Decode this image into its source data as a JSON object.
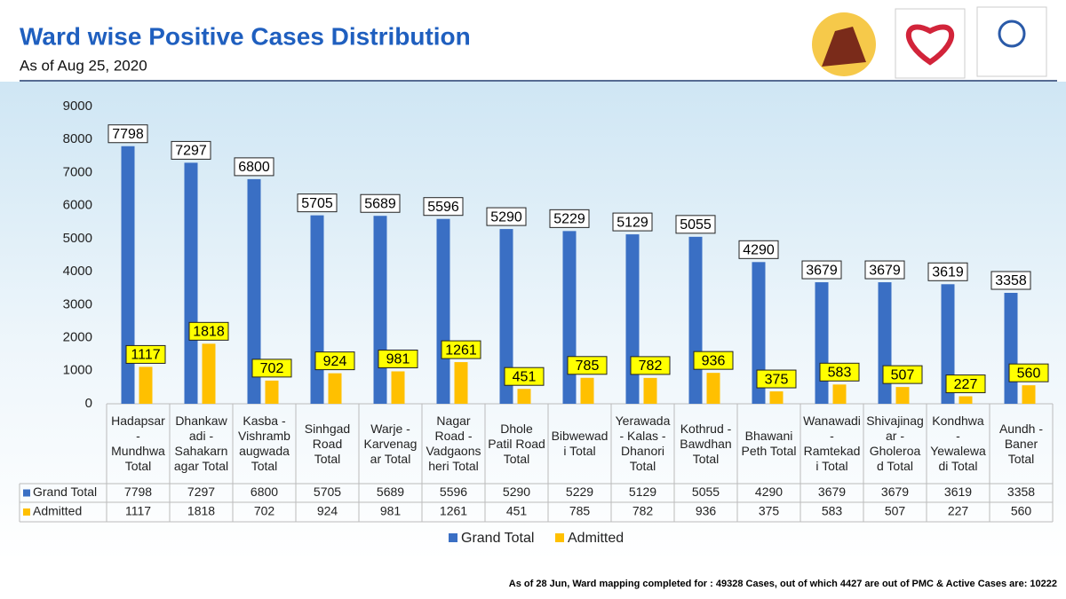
{
  "chart_data": {
    "type": "bar",
    "title": "Ward wise Positive Cases Distribution",
    "subtitle": "As of Aug  25, 2020",
    "categories": [
      "Hadapsar - Mundhwa Total",
      "Dhankawadi - Sahakarnagar Total",
      "Kasba - Vishrambaugwada Total",
      "Sinhgad Road Total",
      "Warje - Karvenagar Total",
      "Nagar Road - Vadgaonsheri Total",
      "Dhole Patil Road Total",
      "Bibwewadi Total",
      "Yerawada - Kalas - Dhanori Total",
      "Kothrud - Bawdhan Total",
      "Bhawani Peth Total",
      "Wanawadi - Ramtekadi Total",
      "Shivajinagar - Gholeroad Total",
      "Kondhwa - Yewalewadi Total",
      "Aundh - Baner Total"
    ],
    "series": [
      {
        "name": "Grand Total",
        "color": "#3a6fc4",
        "values": [
          7798,
          7297,
          6800,
          5705,
          5689,
          5596,
          5290,
          5229,
          5129,
          5055,
          4290,
          3679,
          3679,
          3619,
          3358
        ]
      },
      {
        "name": "Admitted",
        "color": "#ffc000",
        "values": [
          1117,
          1818,
          702,
          924,
          981,
          1261,
          451,
          785,
          782,
          936,
          375,
          583,
          507,
          227,
          560
        ]
      }
    ],
    "ylim": [
      0,
      9000
    ],
    "yticks": [
      0,
      1000,
      2000,
      3000,
      4000,
      5000,
      6000,
      7000,
      8000,
      9000
    ],
    "grid": false,
    "legend": "bottom",
    "note": "As of 28 Jun, Ward mapping completed for : 49328 Cases, out of which 4427 are out of PMC & Active Cases are: 10222"
  }
}
